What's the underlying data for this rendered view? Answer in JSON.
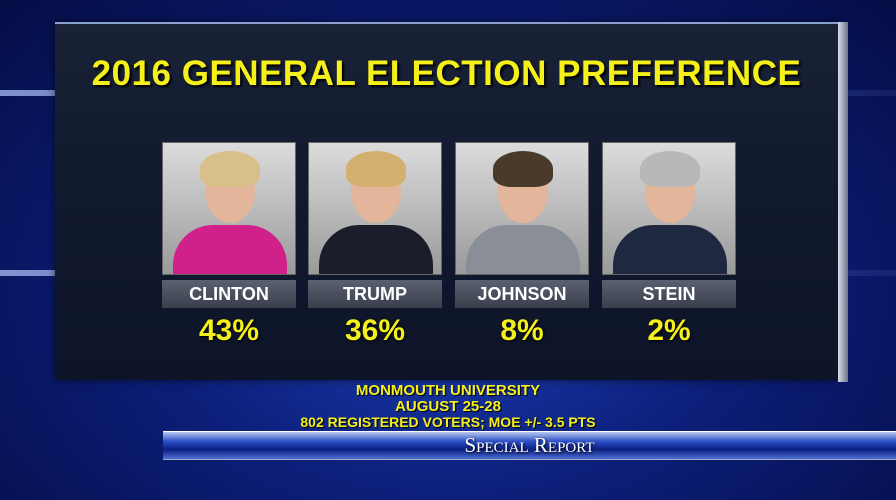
{
  "title": "2016 GENERAL ELECTION PREFERENCE",
  "candidates": [
    {
      "name": "CLINTON",
      "percent": "43%",
      "hair": "#d8c08a",
      "outfit": "#d0208a"
    },
    {
      "name": "TRUMP",
      "percent": "36%",
      "hair": "#d4b070",
      "outfit": "#1a1d2a"
    },
    {
      "name": "JOHNSON",
      "percent": "8%",
      "hair": "#4a3a2a",
      "outfit": "#8a8e96"
    },
    {
      "name": "STEIN",
      "percent": "2%",
      "hair": "#b8b8b8",
      "outfit": "#1e2840"
    }
  ],
  "source": {
    "line1": "MONMOUTH UNIVERSITY",
    "line2": "AUGUST 25-28",
    "line3": "802 REGISTERED VOTERS; MOE +/- 3.5 PTS"
  },
  "show": "Special Report"
}
